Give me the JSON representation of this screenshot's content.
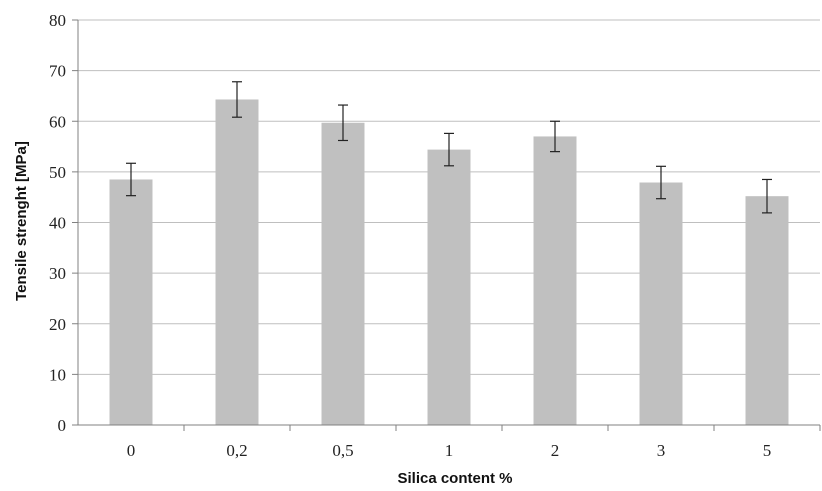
{
  "chart_data": {
    "type": "bar",
    "title": "",
    "xlabel": "Silica content %",
    "ylabel": "Tensile strenght [MPa]",
    "categories": [
      "0",
      "0,2",
      "0,5",
      "1",
      "2",
      "3",
      "5"
    ],
    "values": [
      48.5,
      64.3,
      59.7,
      54.4,
      57.0,
      47.9,
      45.2
    ],
    "error": [
      3.2,
      3.5,
      3.5,
      3.2,
      3.0,
      3.2,
      3.3
    ],
    "ylim": [
      0,
      80
    ],
    "yticks": [
      "0",
      "10",
      "20",
      "30",
      "40",
      "50",
      "60",
      "70",
      "80"
    ],
    "grid": true,
    "legend": "none",
    "colors": {
      "bar": "#c0c0c0",
      "grid": "#bfbfbf",
      "axis": "#808080",
      "error": "#222222"
    }
  }
}
